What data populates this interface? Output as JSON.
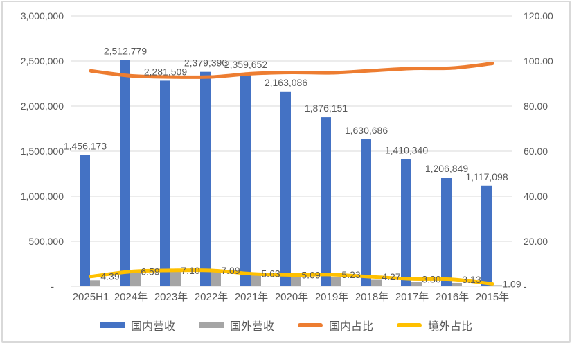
{
  "chart_data": {
    "type": "bar",
    "subtype": "combo-clustered-bar-with-smooth-lines",
    "categories": [
      "2025H1",
      "2024年",
      "2023年",
      "2022年",
      "2021年",
      "2020年",
      "2019年",
      "2018年",
      "2017年",
      "2016年",
      "2015年"
    ],
    "series": [
      {
        "name": "国内营收",
        "kind": "bar",
        "axis": "left",
        "color": "#4472C4",
        "values": [
          1456173,
          2512779,
          2281509,
          2379390,
          2359652,
          2163086,
          1876151,
          1630686,
          1410340,
          1206849,
          1117098
        ],
        "labels": [
          "1,456,173",
          "2,512,779",
          "2,281,509",
          "2,379,390",
          "2,359,652",
          "2,163,086",
          "1,876,151",
          "1,630,686",
          "1,410,340",
          "1,206,849",
          "1,117,098"
        ]
      },
      {
        "name": "国外营收",
        "kind": "bar",
        "axis": "left",
        "color": "#A5A5A5",
        "values_estimated": true,
        "values": [
          66900,
          177300,
          174400,
          181600,
          140800,
          116000,
          103500,
          72700,
          48100,
          39000,
          12300
        ],
        "labels": null
      },
      {
        "name": "国内占比",
        "kind": "line",
        "axis": "right",
        "color": "#ED7D31",
        "values_estimated": true,
        "values": [
          95.61,
          93.41,
          92.9,
          92.91,
          94.37,
          94.91,
          94.77,
          95.73,
          96.7,
          96.87,
          98.91
        ],
        "labels": null
      },
      {
        "name": "境外占比",
        "kind": "line",
        "axis": "right",
        "color": "#FFC000",
        "values": [
          4.39,
          6.59,
          7.1,
          7.09,
          5.63,
          5.09,
          5.23,
          4.27,
          3.3,
          3.13,
          1.09
        ],
        "labels": [
          "4.39",
          "6.59",
          "7.10",
          "7.09",
          "5.63",
          "5.09",
          "5.23",
          "4.27",
          "3.30",
          "3.13",
          "1.09"
        ]
      }
    ],
    "left_axis": {
      "min": 0,
      "max": 3000000,
      "tick_labels": [
        "3,000,000",
        "2,500,000",
        "2,000,000",
        "1,500,000",
        "1,000,000",
        "500,000",
        "-"
      ]
    },
    "right_axis": {
      "min": 0,
      "max": 120,
      "tick_labels": [
        "120.00",
        "100.00",
        "80.00",
        "60.00",
        "40.00",
        "20.00",
        "-"
      ]
    },
    "grid": true,
    "legend_position": "bottom",
    "legend": [
      {
        "label": "国内营收",
        "type": "bar",
        "color": "#4472C4"
      },
      {
        "label": "国外营收",
        "type": "bar",
        "color": "#A5A5A5"
      },
      {
        "label": "国内占比",
        "type": "line",
        "color": "#ED7D31"
      },
      {
        "label": "境外占比",
        "type": "line",
        "color": "#FFC000"
      }
    ]
  },
  "colors": {
    "text": "#595959",
    "gridline": "#d9d9d9",
    "frame_border": "#d9d9d9",
    "background": "#ffffff"
  }
}
